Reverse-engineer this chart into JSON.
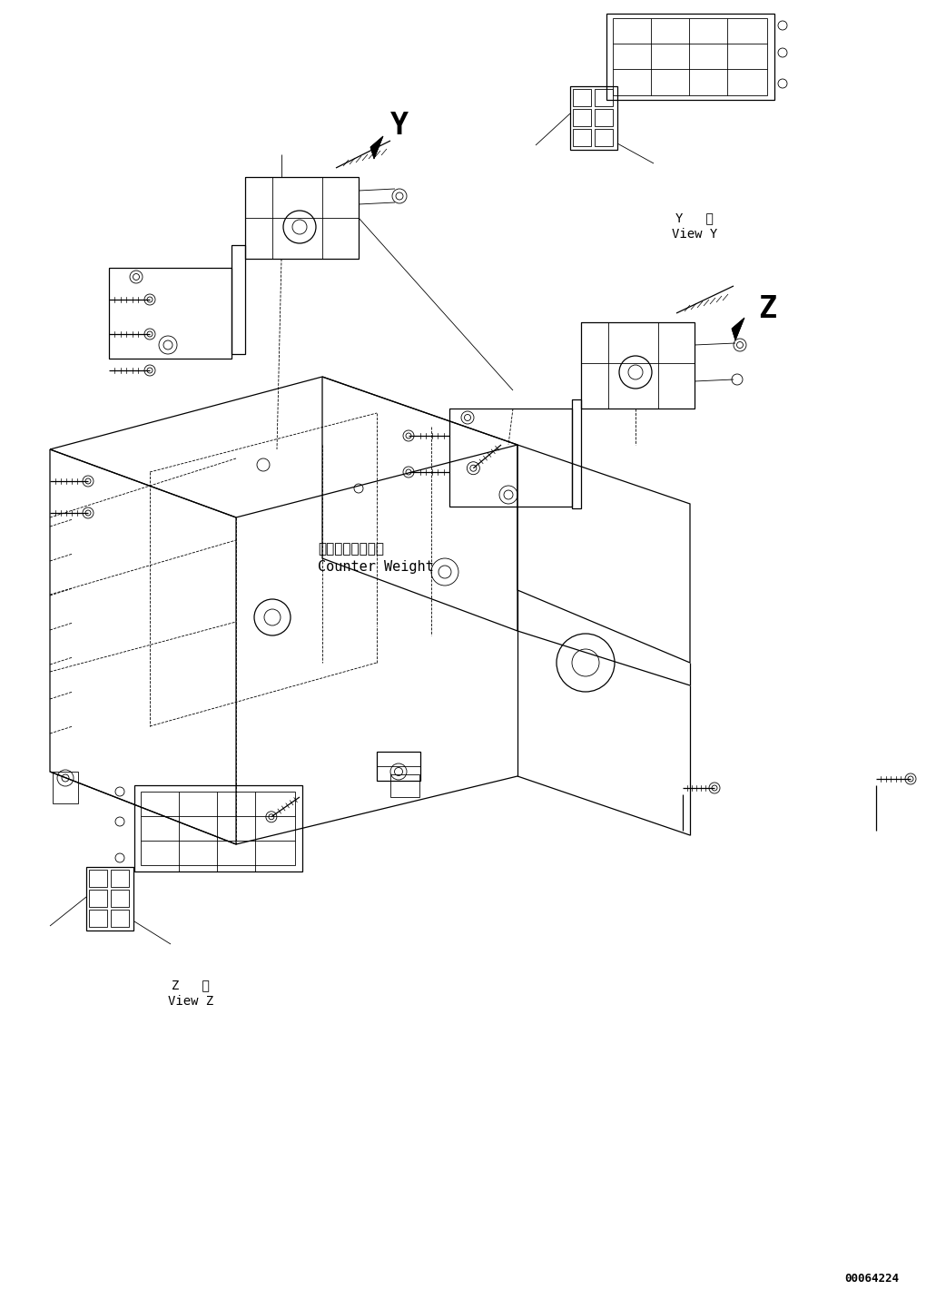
{
  "bg_color": "#ffffff",
  "fig_width": 10.42,
  "fig_height": 14.21,
  "dpi": 100,
  "diagram_id": "00064224",
  "label_Y": "Y",
  "label_Z": "Z",
  "view_Y_text_1": "Y   視",
  "view_Y_text_2": "View Y",
  "view_Z_text_1": "Z   視",
  "view_Z_text_2": "View Z",
  "counter_weight_jp": "カウンタウェイト",
  "counter_weight_en": "Counter Weight",
  "lw_thin": 0.6,
  "lw_med": 0.9,
  "lw_thick": 1.3
}
